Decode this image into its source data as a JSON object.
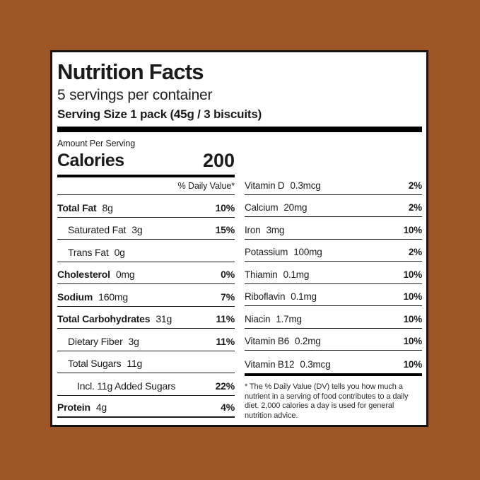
{
  "background_color": "#9d5628",
  "label": {
    "title": "Nutrition Facts",
    "servings_per_container": "5 servings per container",
    "serving_size": "Serving Size 1 pack (45g / 3 biscuits)",
    "amount_per_serving": "Amount Per Serving",
    "calories_label": "Calories",
    "calories_value": "200",
    "daily_value_header": "% Daily Value*",
    "left_rows": [
      {
        "name": "Total Fat",
        "amount": "8g",
        "dv": "10%",
        "bold": true,
        "indent": 0
      },
      {
        "name": "Saturated Fat",
        "amount": "3g",
        "dv": "15%",
        "bold": false,
        "indent": 1
      },
      {
        "name": "Trans Fat",
        "amount": "0g",
        "dv": "",
        "bold": false,
        "indent": 1
      },
      {
        "name": "Cholesterol",
        "amount": "0mg",
        "dv": "0%",
        "bold": true,
        "indent": 0
      },
      {
        "name": "Sodium",
        "amount": "160mg",
        "dv": "7%",
        "bold": true,
        "indent": 0
      },
      {
        "name": "Total Carbohydrates",
        "amount": "31g",
        "dv": "11%",
        "bold": true,
        "indent": 0
      },
      {
        "name": "Dietary Fiber",
        "amount": "3g",
        "dv": "11%",
        "bold": false,
        "indent": 1
      },
      {
        "name": "Total Sugars",
        "amount": "11g",
        "dv": "",
        "bold": false,
        "indent": 1
      },
      {
        "name": "Incl. 11g Added Sugars",
        "amount": "",
        "dv": "22%",
        "bold": false,
        "indent": 2
      },
      {
        "name": "Protein",
        "amount": "4g",
        "dv": "4%",
        "bold": true,
        "indent": 0
      }
    ],
    "right_rows": [
      {
        "name": "Vitamin D",
        "amount": "0.3mcg",
        "dv": "2%"
      },
      {
        "name": "Calcium",
        "amount": "20mg",
        "dv": "2%"
      },
      {
        "name": "Iron",
        "amount": "3mg",
        "dv": "10%"
      },
      {
        "name": "Potassium",
        "amount": "100mg",
        "dv": "2%"
      },
      {
        "name": "Thiamin",
        "amount": "0.1mg",
        "dv": "10%"
      },
      {
        "name": "Riboflavin",
        "amount": "0.1mg",
        "dv": "10%"
      },
      {
        "name": "Niacin",
        "amount": "1.7mg",
        "dv": "10%"
      },
      {
        "name": "Vitamin B6",
        "amount": "0.2mg",
        "dv": "10%"
      },
      {
        "name": "Vitamin B12",
        "amount": "0.3mcg",
        "dv": "10%"
      }
    ],
    "footnote": "* The % Daily Value (DV) tells you how much a nutrient in a serving of food contributes to a daily diet. 2,000 calories a day is used for general nutrition advice."
  }
}
